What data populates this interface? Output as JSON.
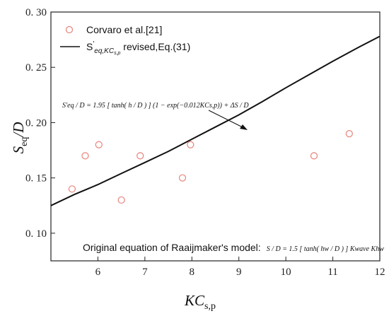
{
  "chart_data": {
    "type": "scatter",
    "x_axis": {
      "min": 5,
      "max": 12,
      "ticks": [
        6,
        7,
        8,
        9,
        10,
        11,
        12
      ],
      "label_main": "KC",
      "label_sub": "s,p"
    },
    "y_axis": {
      "min": 0.075,
      "max": 0.3,
      "ticks": [
        0.1,
        0.15,
        0.2,
        0.25,
        0.3
      ],
      "tick_labels": [
        "0. 10",
        "0. 15",
        "0. 20",
        "0. 25",
        "0. 30"
      ],
      "label_main": "S",
      "label_sub": "eq",
      "label_tail": "/D"
    },
    "series": [
      {
        "name": "Corvaro et al.[21]",
        "kind": "marker-circle-open",
        "color": "#e8837a",
        "points": [
          {
            "x": 5.45,
            "y": 0.14
          },
          {
            "x": 5.73,
            "y": 0.17
          },
          {
            "x": 6.02,
            "y": 0.18
          },
          {
            "x": 6.5,
            "y": 0.13
          },
          {
            "x": 6.9,
            "y": 0.17
          },
          {
            "x": 7.8,
            "y": 0.15
          },
          {
            "x": 7.97,
            "y": 0.18
          },
          {
            "x": 10.6,
            "y": 0.17
          },
          {
            "x": 11.35,
            "y": 0.19
          }
        ]
      },
      {
        "name": "S'eq,KCs,p revised,Eq.(31)",
        "kind": "line",
        "color": "#111111",
        "x": [
          5.0,
          5.5,
          6.0,
          6.5,
          7.0,
          7.5,
          8.0,
          8.5,
          9.0,
          9.5,
          10.0,
          10.5,
          11.0,
          11.5,
          12.0
        ],
        "y": [
          0.125,
          0.135,
          0.144,
          0.154,
          0.164,
          0.174,
          0.185,
          0.196,
          0.207,
          0.219,
          0.2315,
          0.2435,
          0.2555,
          0.267,
          0.278
        ]
      }
    ],
    "legend": {
      "position": "top-left",
      "entry1": "Corvaro et al.[21]",
      "entry2_main": "S",
      "entry2_prime": "'",
      "entry2_sub": "eq,KC",
      "entry2_subsub": "s,p",
      "entry2_tail": " revised,Eq.(31)"
    },
    "annotations": {
      "equation1": "S'eq / D = 1.95 [ tanh( h / D ) ] (1 − exp(−0.012KCs,p)) + ΔS / D",
      "equation2_label": "Original equation of Raaijmaker's model:",
      "equation2": "S / D = 1.5 [ tanh( hw / D ) ] Kwave Khw"
    }
  }
}
